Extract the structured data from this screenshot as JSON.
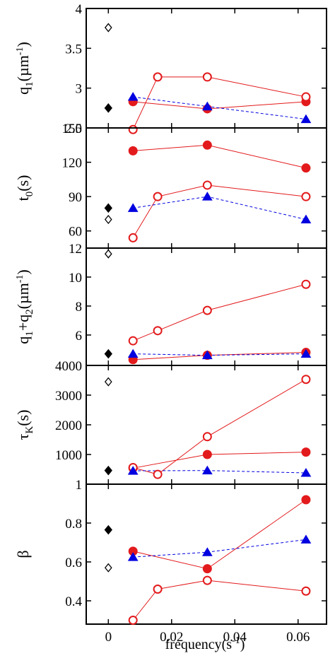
{
  "xlabel_parts": {
    "base": "frequency(s",
    "sup": "-1",
    "close": ")"
  },
  "colors": {
    "solid_red": "#e31a1c",
    "open_red": "#e31a1c",
    "blue": "#0000e0",
    "black": "#000000"
  },
  "x_ticks": [
    "0",
    "0.02",
    "0.04",
    "0.06"
  ],
  "chart_data": [
    {
      "type": "line",
      "id": "q1",
      "ylabel": {
        "base": "q",
        "sub": "1",
        "rest": "(µm",
        "sup": "-1",
        "end": ")"
      },
      "xlim": [
        -0.007,
        0.069
      ],
      "ylim": [
        2.5,
        4
      ],
      "y_ticks": [
        "2.5",
        "3",
        "3.5",
        "4"
      ],
      "series": [
        {
          "style": "filled-circle",
          "x": [
            0.0078,
            0.0313,
            0.0625
          ],
          "y": [
            2.83,
            2.74,
            2.83
          ]
        },
        {
          "style": "open-circle",
          "x": [
            0.0078,
            0.0156,
            0.0313,
            0.0625
          ],
          "y": [
            2.48,
            3.14,
            3.14,
            2.89
          ]
        },
        {
          "style": "filled-triangle",
          "x": [
            0.0078,
            0.0313,
            0.0625
          ],
          "y": [
            2.89,
            2.77,
            2.61
          ]
        },
        {
          "style": "filled-diamond",
          "x": [
            0
          ],
          "y": [
            2.75
          ]
        },
        {
          "style": "open-diamond",
          "x": [
            0
          ],
          "y": [
            3.76
          ]
        }
      ]
    },
    {
      "type": "line",
      "id": "t0",
      "ylabel": {
        "base": "t",
        "sub": "0",
        "rest": "(s)",
        "sup": "",
        "end": ""
      },
      "xlim": [
        -0.007,
        0.069
      ],
      "ylim": [
        45,
        150
      ],
      "y_ticks": [
        "60",
        "90",
        "120",
        "150"
      ],
      "series": [
        {
          "style": "filled-circle",
          "x": [
            0.0078,
            0.0313,
            0.0625
          ],
          "y": [
            130,
            135,
            115
          ]
        },
        {
          "style": "open-circle",
          "x": [
            0.0078,
            0.0156,
            0.0313,
            0.0625
          ],
          "y": [
            54,
            90,
            100,
            90
          ]
        },
        {
          "style": "filled-triangle",
          "x": [
            0.0078,
            0.0313,
            0.0625
          ],
          "y": [
            80,
            90,
            70
          ]
        },
        {
          "style": "filled-diamond",
          "x": [
            0
          ],
          "y": [
            80
          ]
        },
        {
          "style": "open-diamond",
          "x": [
            0
          ],
          "y": [
            70
          ]
        }
      ]
    },
    {
      "type": "line",
      "id": "q1q2",
      "ylabel": {
        "base": "q",
        "sub": "1",
        "rest": "+q",
        "sub2": "2",
        "rest2": "(µm",
        "sup": "-1",
        "end": ")"
      },
      "xlim": [
        -0.007,
        0.069
      ],
      "ylim": [
        3.9,
        12
      ],
      "y_ticks": [
        "6",
        "8",
        "10",
        "12"
      ],
      "series": [
        {
          "style": "filled-circle",
          "x": [
            0.0078,
            0.0313,
            0.0625
          ],
          "y": [
            4.3,
            4.6,
            4.8
          ]
        },
        {
          "style": "open-circle",
          "x": [
            0.0078,
            0.0156,
            0.0313,
            0.0625
          ],
          "y": [
            5.6,
            6.3,
            7.7,
            9.5
          ]
        },
        {
          "style": "filled-triangle",
          "x": [
            0.0078,
            0.0313,
            0.0625
          ],
          "y": [
            4.7,
            4.6,
            4.7
          ]
        },
        {
          "style": "filled-diamond",
          "x": [
            0
          ],
          "y": [
            4.7
          ]
        },
        {
          "style": "open-diamond",
          "x": [
            0
          ],
          "y": [
            11.6
          ]
        }
      ]
    },
    {
      "type": "line",
      "id": "tauK",
      "ylabel": {
        "base": "τ",
        "sub": "K",
        "rest": "(s)",
        "sup": "",
        "end": ""
      },
      "xlim": [
        -0.007,
        0.069
      ],
      "ylim": [
        0,
        4000
      ],
      "y_ticks": [
        "1000",
        "2000",
        "3000",
        "4000"
      ],
      "series": [
        {
          "style": "filled-circle",
          "x": [
            0.0078,
            0.0313,
            0.0625
          ],
          "y": [
            540,
            1000,
            1080
          ]
        },
        {
          "style": "open-circle",
          "x": [
            0.0078,
            0.0156,
            0.0313,
            0.0625
          ],
          "y": [
            560,
            330,
            1600,
            3530
          ]
        },
        {
          "style": "filled-triangle",
          "x": [
            0.0078,
            0.0313,
            0.0625
          ],
          "y": [
            450,
            460,
            380
          ]
        },
        {
          "style": "filled-diamond",
          "x": [
            0
          ],
          "y": [
            460
          ]
        },
        {
          "style": "open-diamond",
          "x": [
            0
          ],
          "y": [
            3450
          ]
        }
      ]
    },
    {
      "type": "line",
      "id": "beta",
      "ylabel": {
        "base": "β",
        "sub": "",
        "rest": "",
        "sup": "",
        "end": ""
      },
      "xlim": [
        -0.007,
        0.069
      ],
      "ylim": [
        0.28,
        1.0
      ],
      "y_ticks": [
        "0.4",
        "0.6",
        "0.8",
        "1"
      ],
      "series": [
        {
          "style": "filled-circle",
          "x": [
            0.0078,
            0.0313,
            0.0625
          ],
          "y": [
            0.655,
            0.565,
            0.92
          ]
        },
        {
          "style": "open-circle",
          "x": [
            0.0078,
            0.0156,
            0.0313,
            0.0625
          ],
          "y": [
            0.3,
            0.46,
            0.505,
            0.45
          ]
        },
        {
          "style": "filled-triangle",
          "x": [
            0.0078,
            0.0313,
            0.0625
          ],
          "y": [
            0.625,
            0.65,
            0.715
          ]
        },
        {
          "style": "filled-diamond",
          "x": [
            0
          ],
          "y": [
            0.765
          ]
        },
        {
          "style": "open-diamond",
          "x": [
            0
          ],
          "y": [
            0.57
          ]
        }
      ]
    }
  ]
}
